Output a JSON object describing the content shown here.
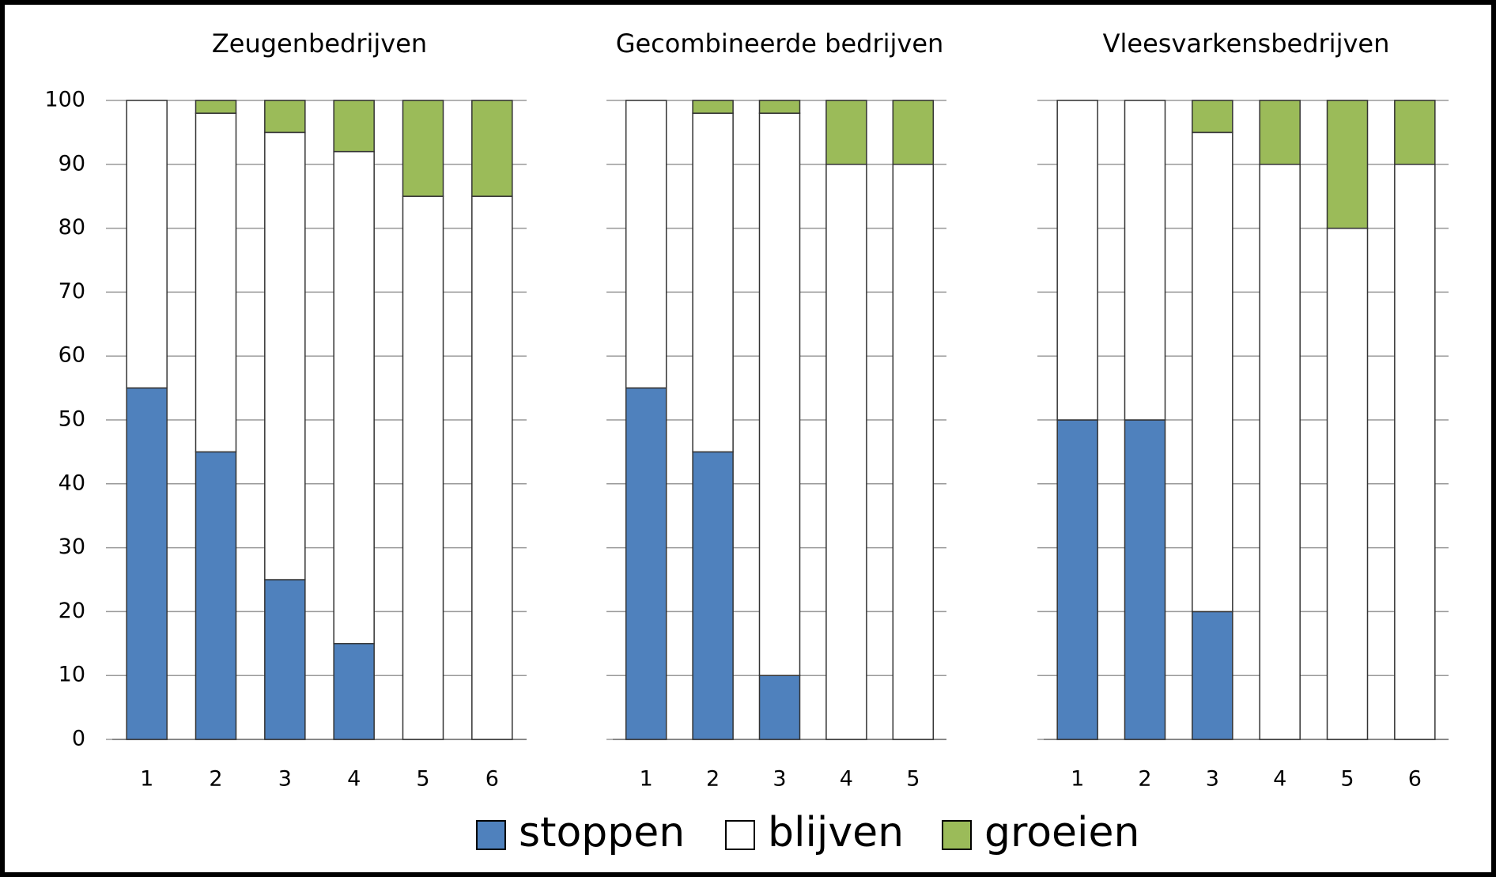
{
  "chart_data": [
    {
      "type": "stacked_bar",
      "title": "Zeugenbedrijven",
      "categories": [
        "1",
        "2",
        "3",
        "4",
        "5",
        "6"
      ],
      "series": [
        {
          "name": "stoppen",
          "color": "#4f81bd",
          "values": [
            55,
            45,
            25,
            15,
            0,
            0
          ]
        },
        {
          "name": "blijven",
          "color": "#ffffff",
          "values": [
            45,
            53,
            70,
            77,
            85,
            85
          ]
        },
        {
          "name": "groeien",
          "color": "#9bbb59",
          "values": [
            0,
            2,
            5,
            8,
            15,
            15
          ]
        }
      ],
      "ylim": [
        0,
        100
      ],
      "yticks": [
        0,
        10,
        20,
        30,
        40,
        50,
        60,
        70,
        80,
        90,
        100
      ],
      "grid": true
    },
    {
      "type": "stacked_bar",
      "title": "Gecombineerde bedrijven",
      "categories": [
        "1",
        "2",
        "3",
        "4",
        "5"
      ],
      "series": [
        {
          "name": "stoppen",
          "color": "#4f81bd",
          "values": [
            55,
            45,
            10,
            0,
            0
          ]
        },
        {
          "name": "blijven",
          "color": "#ffffff",
          "values": [
            45,
            53,
            88,
            90,
            90
          ]
        },
        {
          "name": "groeien",
          "color": "#9bbb59",
          "values": [
            0,
            2,
            2,
            10,
            10
          ]
        }
      ],
      "ylim": [
        0,
        100
      ],
      "yticks": [
        0,
        10,
        20,
        30,
        40,
        50,
        60,
        70,
        80,
        90,
        100
      ],
      "grid": true
    },
    {
      "type": "stacked_bar",
      "title": "Vleesvarkensbedrijven",
      "categories": [
        "1",
        "2",
        "3",
        "4",
        "5",
        "6"
      ],
      "series": [
        {
          "name": "stoppen",
          "color": "#4f81bd",
          "values": [
            50,
            50,
            20,
            0,
            0,
            0
          ]
        },
        {
          "name": "blijven",
          "color": "#ffffff",
          "values": [
            50,
            50,
            75,
            90,
            80,
            90
          ]
        },
        {
          "name": "groeien",
          "color": "#9bbb59",
          "values": [
            0,
            0,
            5,
            10,
            20,
            10
          ]
        }
      ],
      "ylim": [
        0,
        100
      ],
      "yticks": [
        0,
        10,
        20,
        30,
        40,
        50,
        60,
        70,
        80,
        90,
        100
      ],
      "grid": true
    }
  ]
}
